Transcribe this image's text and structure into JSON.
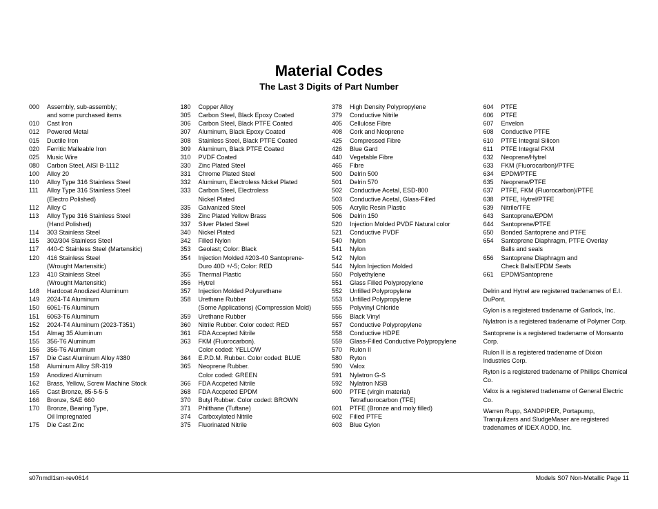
{
  "title": "Material Codes",
  "subtitle": "The Last 3 Digits of Part Number",
  "footer_left": "s07nmdl1sm-rev0614",
  "footer_right": "Models S07 Non-Metallic Page 11",
  "col1": [
    [
      "000",
      "Assembly, sub-assembly;"
    ],
    [
      "",
      "and some purchased items"
    ],
    [
      "010",
      "Cast Iron"
    ],
    [
      "012",
      "Powered Metal"
    ],
    [
      "015",
      "Ductile Iron"
    ],
    [
      "020",
      "Ferritic Malleable Iron"
    ],
    [
      "025",
      "Music Wire"
    ],
    [
      "080",
      "Carbon Steel, AISI B-1112"
    ],
    [
      "100",
      "Alloy 20"
    ],
    [
      "110",
      "Alloy Type 316 Stainless Steel"
    ],
    [
      "111",
      "Alloy Type 316 Stainless Steel"
    ],
    [
      "",
      "(Electro Polished)"
    ],
    [
      "112",
      "Alloy C"
    ],
    [
      "113",
      "Alloy Type 316 Stainless Steel"
    ],
    [
      "",
      "(Hand Polished)"
    ],
    [
      "114",
      "303 Stainless Steel"
    ],
    [
      "115",
      "302/304 Stainless Steel"
    ],
    [
      "117",
      "440-C Stainless Steel (Martensitic)"
    ],
    [
      "120",
      "416 Stainless Steel"
    ],
    [
      "",
      "(Wrought Martensitic)"
    ],
    [
      "123",
      "410 Stainless Steel"
    ],
    [
      "",
      "(Wrought Martensitic)"
    ],
    [
      "148",
      "Hardcoat Anodized Aluminum"
    ],
    [
      "149",
      "2024-T4 Aluminum"
    ],
    [
      "150",
      "6061-T6 Aluminum"
    ],
    [
      "151",
      "6063-T6 Aluminum"
    ],
    [
      "152",
      "2024-T4 Aluminum (2023-T351)"
    ],
    [
      "154",
      "Almag 35 Aluminum"
    ],
    [
      "155",
      "356-T6 Aluminum"
    ],
    [
      "156",
      "356-T6 Aluminum"
    ],
    [
      "157",
      "Die Cast Aluminum Alloy #380"
    ],
    [
      "158",
      "Aluminum Alloy SR-319"
    ],
    [
      "159",
      "Anodized Aluminum"
    ],
    [
      "162",
      "Brass, Yellow, Screw Machine Stock"
    ],
    [
      "165",
      "Cast Bronze, 85-5-5-5"
    ],
    [
      "166",
      "Bronze, SAE 660"
    ],
    [
      "170",
      "Bronze, Bearing Type,"
    ],
    [
      "",
      "Oil Impregnated"
    ],
    [
      "175",
      "Die Cast Zinc"
    ]
  ],
  "col2": [
    [
      "180",
      "Copper Alloy"
    ],
    [
      "305",
      "Carbon Steel, Black Epoxy Coated"
    ],
    [
      "306",
      "Carbon Steel, Black PTFE Coated"
    ],
    [
      "307",
      "Aluminum, Black Epoxy Coated"
    ],
    [
      "308",
      "Stainless Steel, Black PTFE Coated"
    ],
    [
      "309",
      "Aluminum, Black PTFE Coated"
    ],
    [
      "310",
      "PVDF Coated"
    ],
    [
      "330",
      "Zinc Plated Steel"
    ],
    [
      "331",
      "Chrome Plated Steel"
    ],
    [
      "332",
      "Aluminum, Electroless Nickel Plated"
    ],
    [
      "333",
      "Carbon Steel, Electroless"
    ],
    [
      "",
      "Nickel Plated"
    ],
    [
      "335",
      "Galvanized Steel"
    ],
    [
      "336",
      "Zinc Plated Yellow Brass"
    ],
    [
      "337",
      "Silver Plated Steel"
    ],
    [
      "340",
      "Nickel Plated"
    ],
    [
      "342",
      "Filled Nylon"
    ],
    [
      "353",
      "Geolast; Color: Black"
    ],
    [
      "354",
      "Injection Molded #203-40 Santoprene-"
    ],
    [
      "",
      "Duro 40D +/-5; Color: RED"
    ],
    [
      "355",
      "Thermal Plastic"
    ],
    [
      "356",
      "Hytrel"
    ],
    [
      "357",
      "Injection Molded Polyurethane"
    ],
    [
      "358",
      "Urethane Rubber"
    ],
    [
      "",
      "(Some Applications) (Compression Mold)"
    ],
    [
      "359",
      "Urethane Rubber"
    ],
    [
      "360",
      "Nitrile Rubber. Color coded: RED"
    ],
    [
      "361",
      "FDA Accepted Nitrile"
    ],
    [
      "363",
      "FKM (Fluorocarbon)."
    ],
    [
      "",
      "Color coded: YELLOW"
    ],
    [
      "364",
      "E.P.D.M. Rubber. Color coded: BLUE"
    ],
    [
      "365",
      "Neoprene Rubber."
    ],
    [
      "",
      "Color coded: GREEN"
    ],
    [
      "366",
      "FDA Accpeted Nitrile"
    ],
    [
      "368",
      "FDA Accpeted EPDM"
    ],
    [
      "370",
      "Butyl Rubber. Color coded: BROWN"
    ],
    [
      "371",
      "Philthane (Tuftane)"
    ],
    [
      "374",
      "Carboxylated Nitrile"
    ],
    [
      "375",
      "Fluorinated Nitrile"
    ]
  ],
  "col3": [
    [
      "378",
      "High Density Polypropylene"
    ],
    [
      "379",
      "Conductive Nitrile"
    ],
    [
      "405",
      "Cellulose Fibre"
    ],
    [
      "408",
      "Cork and Neoprene"
    ],
    [
      "425",
      "Compressed Fibre"
    ],
    [
      "426",
      "Blue Gard"
    ],
    [
      "440",
      "Vegetable Fibre"
    ],
    [
      "465",
      "Fibre"
    ],
    [
      "500",
      "Delrin 500"
    ],
    [
      "501",
      "Delrin 570"
    ],
    [
      "502",
      "Conductive Acetal, ESD-800"
    ],
    [
      "503",
      "Conductive Acetal, Glass-Filled"
    ],
    [
      "505",
      "Acrylic Resin Plastic"
    ],
    [
      "506",
      "Delrin 150"
    ],
    [
      "520",
      "Injection Molded PVDF Natural color"
    ],
    [
      "521",
      "Conductive PVDF"
    ],
    [
      "540",
      "Nylon"
    ],
    [
      "541",
      "Nylon"
    ],
    [
      "542",
      "Nylon"
    ],
    [
      "544",
      "Nylon Injection Molded"
    ],
    [
      "550",
      "Polyethylene"
    ],
    [
      "551",
      "Glass Filled Polypropylene"
    ],
    [
      "552",
      "Unfilled Polypropylene"
    ],
    [
      "553",
      "Unfilled Polypropylene"
    ],
    [
      "555",
      "Polyvinyl Chloride"
    ],
    [
      "556",
      "Black Vinyl"
    ],
    [
      "557",
      "Conductive Polypropylene"
    ],
    [
      "558",
      "Conductive HDPE"
    ],
    [
      "559",
      "Glass-Filled Conductive Polypropylene"
    ],
    [
      "570",
      "Rulon II"
    ],
    [
      "580",
      "Ryton"
    ],
    [
      "590",
      "Valox"
    ],
    [
      "591",
      "Nylatron G-S"
    ],
    [
      "592",
      "Nylatron NSB"
    ],
    [
      "600",
      "PTFE (virgin material)"
    ],
    [
      "",
      "Tetrafluorocarbon (TFE)"
    ],
    [
      "601",
      "PTFE (Bronze and moly filled)"
    ],
    [
      "602",
      "Filled PTFE"
    ],
    [
      "603",
      "Blue Gylon"
    ]
  ],
  "col4": [
    [
      "604",
      "PTFE"
    ],
    [
      "606",
      "PTFE"
    ],
    [
      "607",
      "Envelon"
    ],
    [
      "608",
      "Conductive PTFE"
    ],
    [
      "610",
      "PTFE Integral Silicon"
    ],
    [
      "611",
      "PTFE Integral FKM"
    ],
    [
      "632",
      "Neoprene/Hytrel"
    ],
    [
      "633",
      "FKM (Fluorocarbon)/PTFE"
    ],
    [
      "634",
      "EPDM/PTFE"
    ],
    [
      "635",
      "Neoprene/PTFE"
    ],
    [
      "637",
      "PTFE, FKM (Fluorocarbon)/PTFE"
    ],
    [
      "638",
      "PTFE, Hytrel/PTFE"
    ],
    [
      "639",
      "Nitrile/TFE"
    ],
    [
      "643",
      "Santoprene/EPDM"
    ],
    [
      "644",
      "Santoprene/PTFE"
    ],
    [
      "650",
      "Bonded Santoprene and PTFE"
    ],
    [
      "654",
      "Santoprene Diaphragm, PTFE Overlay"
    ],
    [
      "",
      "Balls and seals"
    ],
    [
      "656",
      "Santoprene Diaphragm and"
    ],
    [
      "",
      "Check Balls/EPDM Seats"
    ],
    [
      "661",
      "EPDM/Santoprene"
    ]
  ],
  "notes": [
    "Delrin and Hytrel are registered tradenames of E.I. DuPont.",
    "Gylon is a registered tradename of Garlock, Inc.",
    "Nylatron is a registered tradename of Polymer Corp.",
    "Santoprene is a registered tradename of Monsanto Corp.",
    "Rulon II is a registered tradename of Dixion Industries Corp.",
    "Ryton is a registered tradename of Phillips Chemical Co.",
    "Valox is a registered tradename of General Electric Co.",
    "Warren Rupp, SANDPIPER, Portapump, Tranquilizers and SludgeMaser are registered tradenames of IDEX AODD, Inc."
  ]
}
